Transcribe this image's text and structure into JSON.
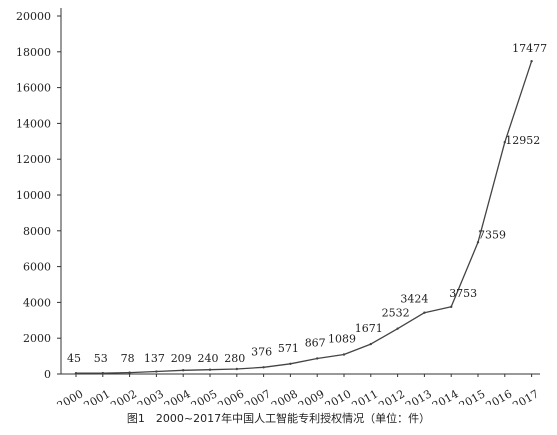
{
  "chart_data": {
    "type": "line",
    "title": "图1　2000~2017年中国人工智能专利授权情况（单位：件）",
    "xlabel": "",
    "ylabel": "",
    "categories": [
      "2000",
      "2001",
      "2002",
      "2003",
      "2004",
      "2005",
      "2006",
      "2007",
      "2008",
      "2009",
      "2010",
      "2011",
      "2012",
      "2013",
      "2014",
      "2015",
      "2016",
      "2017"
    ],
    "series": [
      {
        "values": [
          45,
          53,
          78,
          137,
          209,
          240,
          280,
          376,
          571,
          867,
          1089,
          1671,
          2532,
          3424,
          3753,
          7359,
          12952,
          17477
        ]
      }
    ],
    "data_labels": [
      "45",
      "53",
      "78",
      "137",
      "209",
      "240",
      "280",
      "376",
      "571",
      "867",
      "1089",
      "1671",
      "2532",
      "3424",
      "3753",
      "7359",
      "12952",
      "17477"
    ],
    "yticks": [
      0,
      2000,
      4000,
      6000,
      8000,
      10000,
      12000,
      14000,
      16000,
      18000,
      20000
    ],
    "ytick_labels": [
      "0",
      "2000",
      "4000",
      "6000",
      "8000",
      "10000",
      "12000",
      "14000",
      "16000",
      "18000",
      "20000"
    ],
    "ylim": [
      0,
      20000
    ],
    "grid": false,
    "legend": "none",
    "colors": {
      "line": "#444444",
      "axis": "#333333",
      "text": "#222222"
    }
  }
}
